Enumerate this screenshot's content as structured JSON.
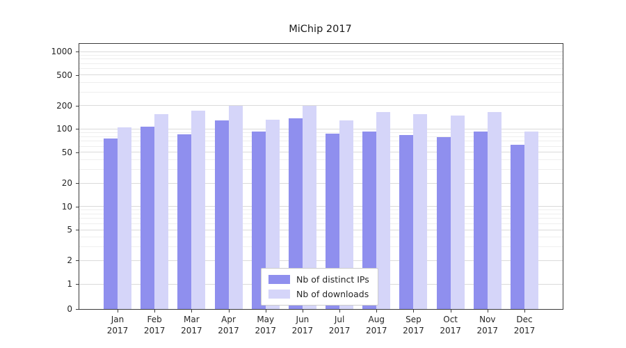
{
  "chart_data": {
    "type": "bar",
    "title": "MiChip 2017",
    "scale": "symlog",
    "grid": true,
    "legend_position": "lower center",
    "categories": [
      "Jan",
      "Feb",
      "Mar",
      "Apr",
      "May",
      "Jun",
      "Jul",
      "Aug",
      "Sep",
      "Oct",
      "Nov",
      "Dec"
    ],
    "category_sublabel": "2017",
    "yticks": [
      0,
      1,
      2,
      5,
      10,
      20,
      50,
      100,
      200,
      500,
      1000
    ],
    "ylim": [
      0,
      1000
    ],
    "series": [
      {
        "name": "Nb of distinct IPs",
        "color": "#8f8fee",
        "values": [
          75,
          107,
          85,
          130,
          92,
          138,
          88,
          93,
          84,
          78,
          92,
          62
        ]
      },
      {
        "name": "Nb of downloads",
        "color": "#d5d5f9",
        "values": [
          105,
          155,
          172,
          198,
          132,
          198,
          130,
          165,
          155,
          148,
          165,
          93
        ]
      }
    ]
  }
}
